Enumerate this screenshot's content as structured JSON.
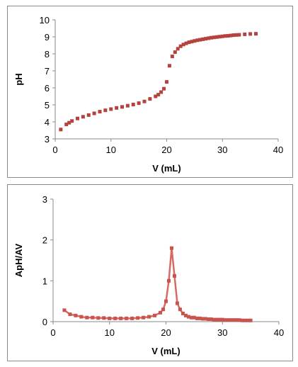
{
  "chart_data": [
    {
      "type": "scatter",
      "xlabel": "V (mL)",
      "ylabel": "pH",
      "xlim": [
        0,
        40
      ],
      "ylim": [
        3,
        10
      ],
      "xticks": [
        0,
        10,
        20,
        30,
        40
      ],
      "yticks": [
        3,
        4,
        5,
        6,
        7,
        8,
        9,
        10
      ],
      "grid": false,
      "marker_color": "#b5423e",
      "series": [
        {
          "x": [
            1,
            2,
            2.5,
            3,
            4,
            5,
            6,
            7,
            8,
            9,
            10,
            11,
            12,
            13,
            14,
            15,
            16,
            17,
            18,
            18.5,
            19,
            19.5,
            20,
            20.5,
            21,
            21.5,
            22,
            22.5,
            23,
            23.5,
            24,
            24.5,
            25,
            25.5,
            26,
            26.5,
            27,
            27.5,
            28,
            28.5,
            29,
            29.5,
            30,
            30.5,
            31,
            31.5,
            32,
            32.5,
            33,
            34,
            35,
            36
          ],
          "y": [
            3.55,
            3.85,
            3.95,
            4.05,
            4.2,
            4.3,
            4.4,
            4.5,
            4.6,
            4.68,
            4.75,
            4.82,
            4.88,
            4.95,
            5.02,
            5.1,
            5.2,
            5.35,
            5.5,
            5.6,
            5.75,
            5.95,
            6.35,
            7.3,
            7.85,
            8.1,
            8.3,
            8.45,
            8.55,
            8.62,
            8.68,
            8.72,
            8.76,
            8.8,
            8.83,
            8.86,
            8.89,
            8.92,
            8.95,
            8.97,
            8.99,
            9.01,
            9.03,
            9.05,
            9.06,
            9.08,
            9.1,
            9.11,
            9.12,
            9.15,
            9.17,
            9.18
          ]
        }
      ]
    },
    {
      "type": "line",
      "xlabel": "V (mL)",
      "ylabel": "ApH/AV",
      "xlim": [
        0,
        40
      ],
      "ylim": [
        0,
        3
      ],
      "xticks": [
        0,
        10,
        20,
        30,
        40
      ],
      "yticks": [
        0,
        1,
        2,
        3
      ],
      "grid": false,
      "line_color": "#d86a63",
      "marker_color": "#c9534d",
      "series": [
        {
          "x": [
            2,
            3,
            4,
            5,
            6,
            7,
            8,
            9,
            10,
            11,
            12,
            13,
            14,
            15,
            16,
            17,
            18,
            19,
            19.5,
            20,
            20.5,
            21,
            21.5,
            22,
            22.5,
            23,
            23.5,
            24,
            24.5,
            25,
            25.5,
            26,
            26.5,
            27,
            27.5,
            28,
            28.5,
            29,
            29.5,
            30,
            30.5,
            31,
            31.5,
            32,
            32.5,
            33,
            33.5,
            34,
            34.5,
            35
          ],
          "y": [
            0.28,
            0.18,
            0.15,
            0.12,
            0.1,
            0.1,
            0.09,
            0.09,
            0.08,
            0.08,
            0.08,
            0.08,
            0.08,
            0.09,
            0.1,
            0.12,
            0.15,
            0.22,
            0.3,
            0.5,
            1.0,
            1.8,
            1.12,
            0.45,
            0.3,
            0.2,
            0.15,
            0.12,
            0.1,
            0.1,
            0.08,
            0.08,
            0.07,
            0.07,
            0.06,
            0.06,
            0.05,
            0.05,
            0.05,
            0.05,
            0.04,
            0.04,
            0.04,
            0.04,
            0.04,
            0.04,
            0.03,
            0.03,
            0.03,
            0.03
          ]
        }
      ]
    }
  ]
}
